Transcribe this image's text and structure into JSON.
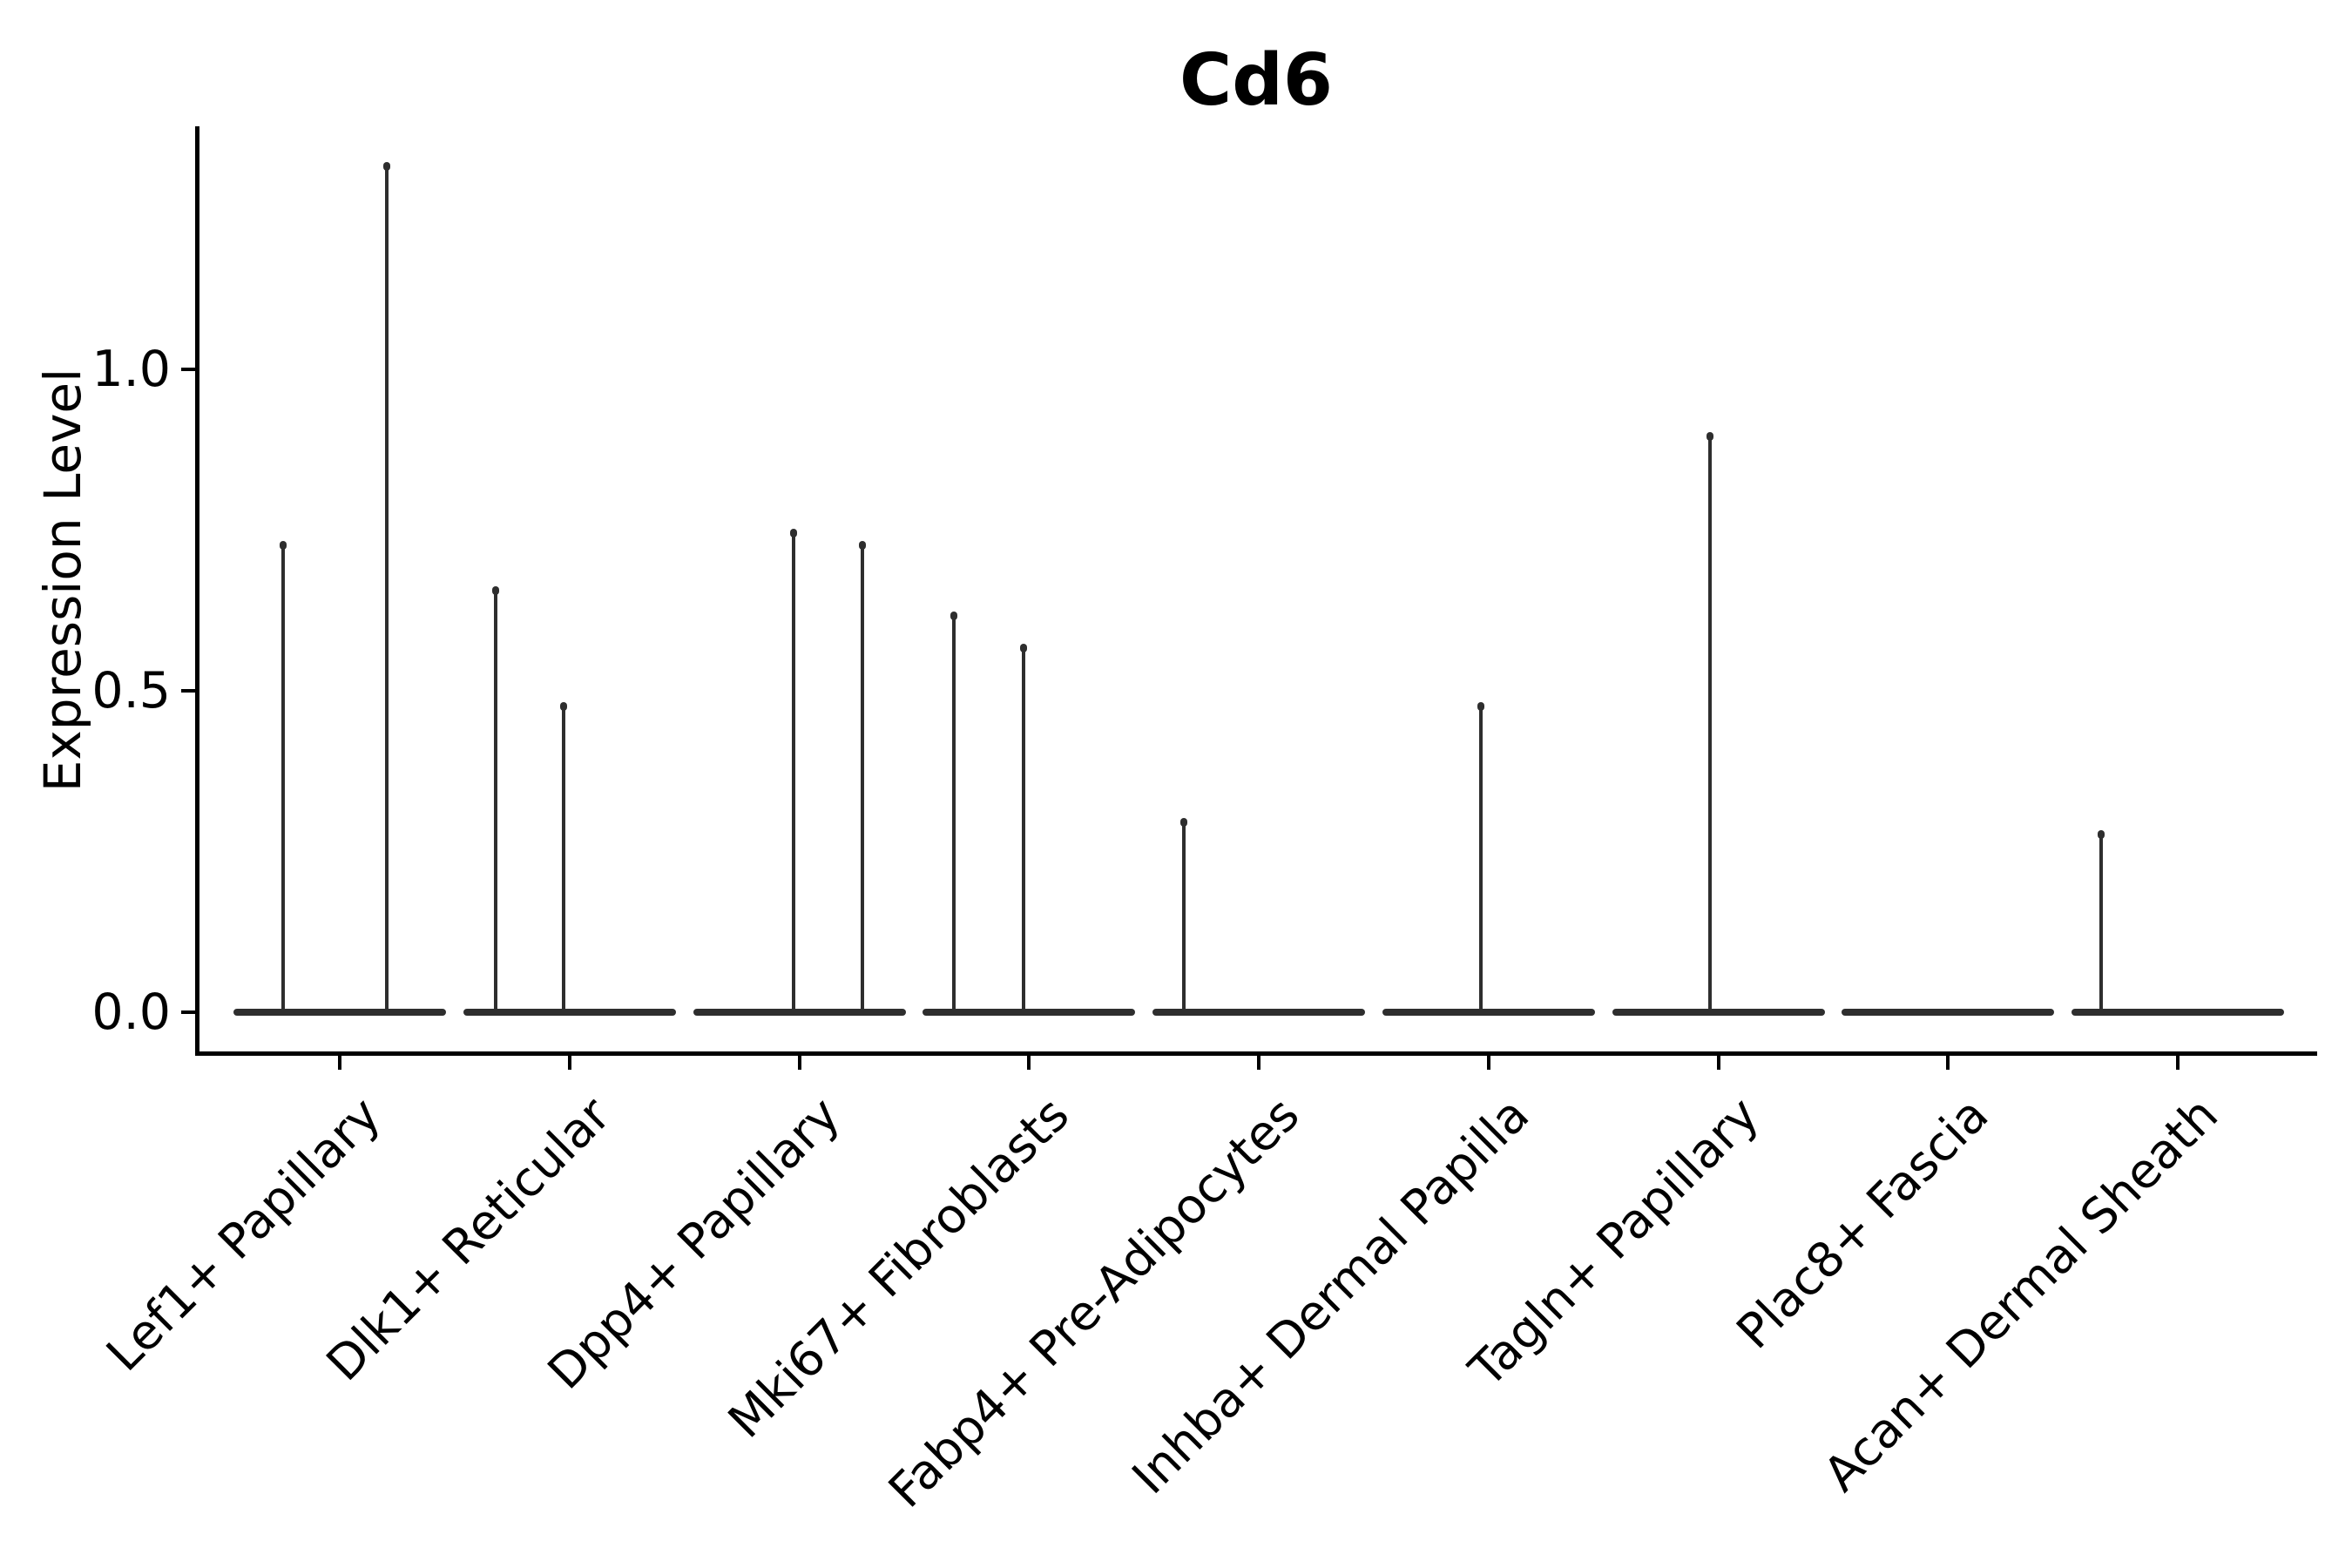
{
  "title": "Cd6",
  "y_axis": {
    "label": "Expression Level",
    "tick_labels": [
      "0.0",
      "0.5",
      "1.0"
    ]
  },
  "chart_data": {
    "type": "violin",
    "title": "Cd6",
    "xlabel": "",
    "ylabel": "Expression Level",
    "ylim": [
      -0.06,
      1.38
    ],
    "yticks": [
      0.0,
      0.5,
      1.0
    ],
    "ytick_labels": [
      "0.0",
      "0.5",
      "1.0"
    ],
    "grid": false,
    "legend": "none",
    "x_tick_rotation_deg": 45,
    "categories": [
      "Lef1+ Papillary",
      "Dlk1+ Reticular",
      "Dpp4+ Papillary",
      "Mki67+ Fibroblasts",
      "Fabp4+ Pre-Adipocytes",
      "Inhba+ Dermal Papilla",
      "Tagln+ Papillary",
      "Plac8+ Fascia",
      "Acan+ Dermal Sheath"
    ],
    "violins": [
      {
        "label": "Lef1+ Papillary",
        "baseline_value": 0.0,
        "spikes": [
          {
            "dx": -65,
            "value": 0.73
          },
          {
            "dx": 54,
            "value": 1.32
          }
        ]
      },
      {
        "label": "Dlk1+ Reticular",
        "baseline_value": 0.0,
        "spikes": [
          {
            "dx": -85,
            "value": 0.66
          },
          {
            "dx": -7,
            "value": 0.48
          }
        ]
      },
      {
        "label": "Dpp4+ Papillary",
        "baseline_value": 0.0,
        "spikes": [
          {
            "dx": -7,
            "value": 0.75
          },
          {
            "dx": 72,
            "value": 0.73
          }
        ]
      },
      {
        "label": "Mki67+ Fibroblasts",
        "baseline_value": 0.0,
        "spikes": [
          {
            "dx": -86,
            "value": 0.62
          },
          {
            "dx": -6,
            "value": 0.57
          }
        ]
      },
      {
        "label": "Fabp4+ Pre-Adipocytes",
        "baseline_value": 0.0,
        "spikes": [
          {
            "dx": -86,
            "value": 0.3
          }
        ]
      },
      {
        "label": "Inhba+ Dermal Papilla",
        "baseline_value": 0.0,
        "spikes": [
          {
            "dx": -9,
            "value": 0.48
          }
        ]
      },
      {
        "label": "Tagln+ Papillary",
        "baseline_value": 0.0,
        "spikes": [
          {
            "dx": -10,
            "value": 0.9
          }
        ]
      },
      {
        "label": "Plac8+ Fascia",
        "baseline_value": 0.0,
        "spikes": []
      },
      {
        "label": "Acan+ Dermal Sheath",
        "baseline_value": 0.0,
        "spikes": [
          {
            "dx": -88,
            "value": 0.28
          }
        ]
      }
    ]
  }
}
